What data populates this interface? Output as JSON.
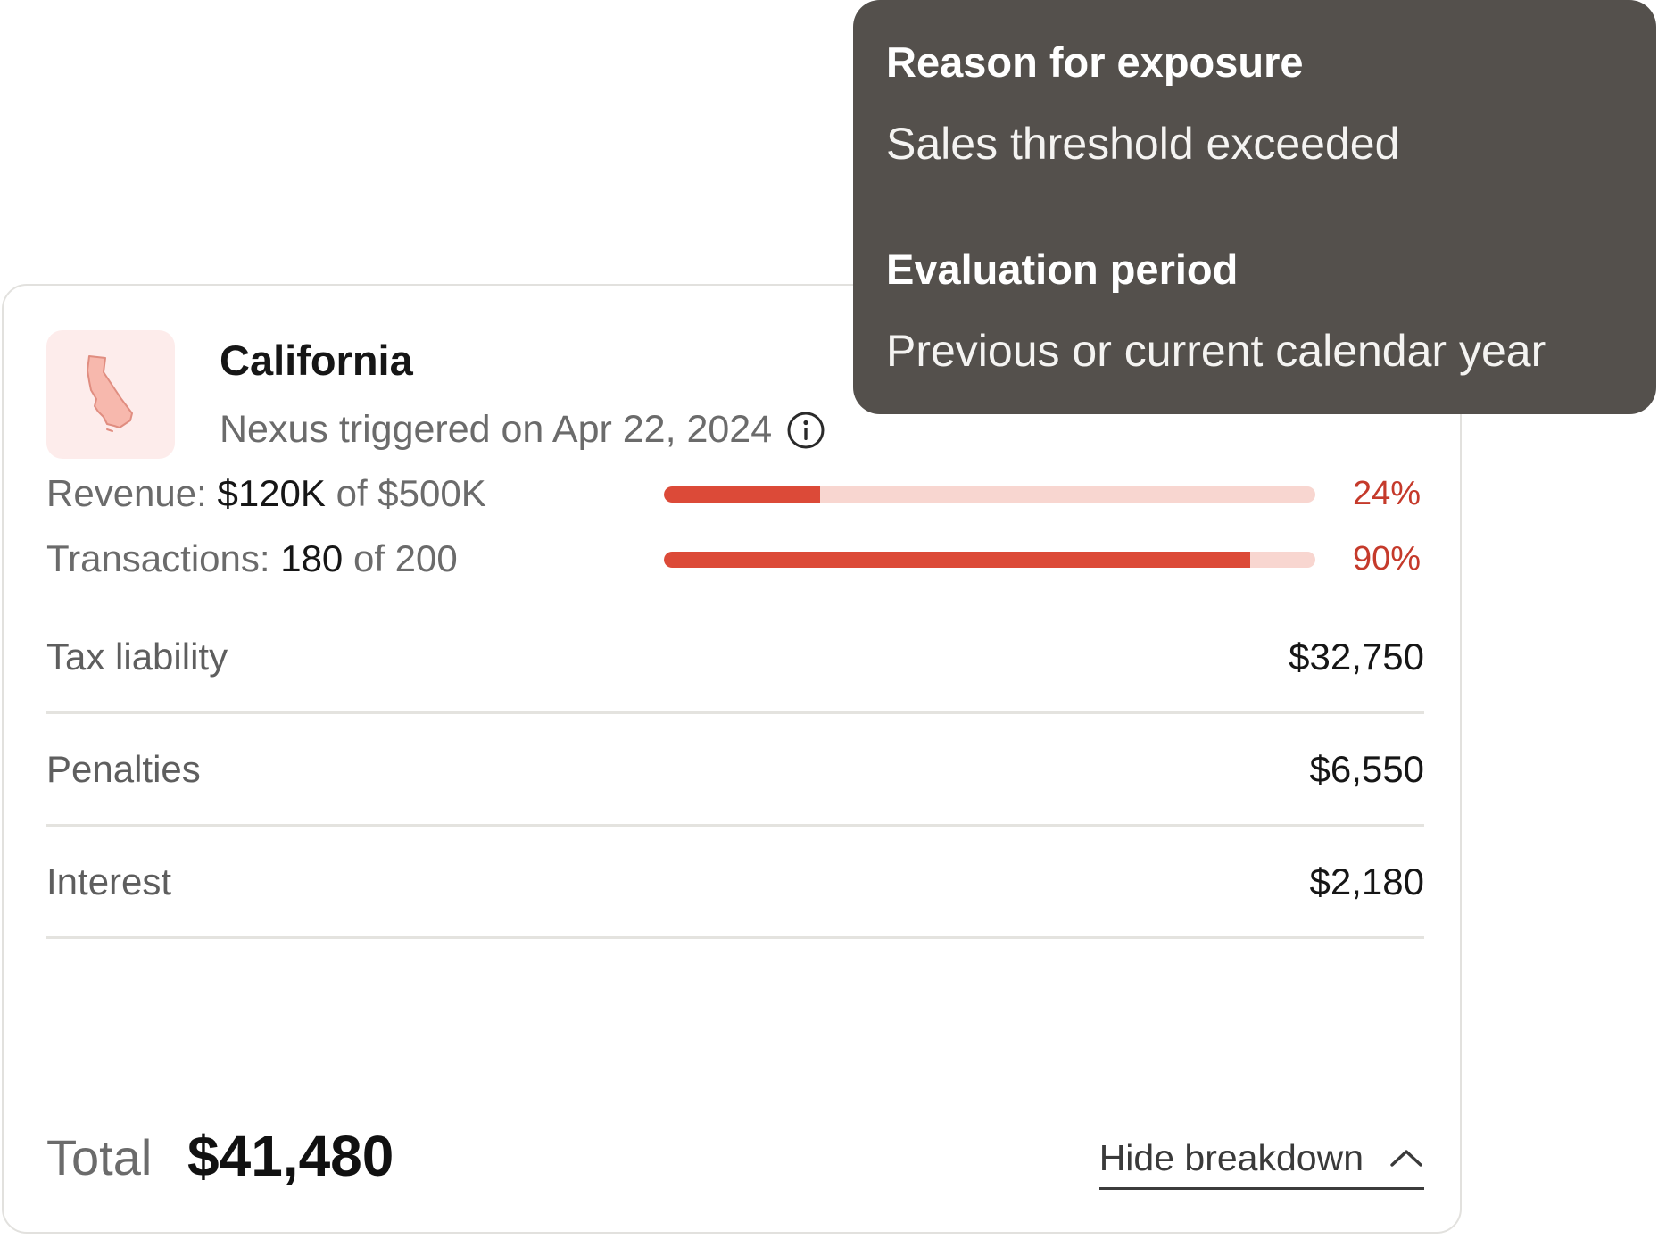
{
  "state": {
    "name": "California",
    "nexus_text": "Nexus triggered on Apr 22, 2024",
    "icon": "california-map-icon",
    "badge_color": "#fdeceb"
  },
  "metrics": [
    {
      "label_prefix": "Revenue: ",
      "current": "$120K",
      "separator": " of ",
      "threshold": "$500K",
      "percent_label": "24%",
      "fraction": 0.24
    },
    {
      "label_prefix": "Transactions: ",
      "current": "180",
      "separator": " of ",
      "threshold": "200",
      "percent_label": "90%",
      "fraction": 0.9
    }
  ],
  "line_items": [
    {
      "label": "Tax liability",
      "value": "$32,750"
    },
    {
      "label": "Penalties",
      "value": "$6,550"
    },
    {
      "label": "Interest",
      "value": "$2,180"
    }
  ],
  "total": {
    "label": "Total",
    "value": "$41,480"
  },
  "toggle": {
    "label": "Hide breakdown",
    "icon": "chevron-up-icon"
  },
  "tooltip": {
    "reason_heading": "Reason for exposure",
    "reason_value": "Sales threshold exceeded",
    "period_heading": "Evaluation period",
    "period_value": "Previous or current calendar year"
  },
  "colors": {
    "progress_fill": "#dc4a38",
    "progress_track": "#f8d6d0",
    "percent_text": "#c53a2b",
    "tooltip_bg": "#54504c"
  }
}
